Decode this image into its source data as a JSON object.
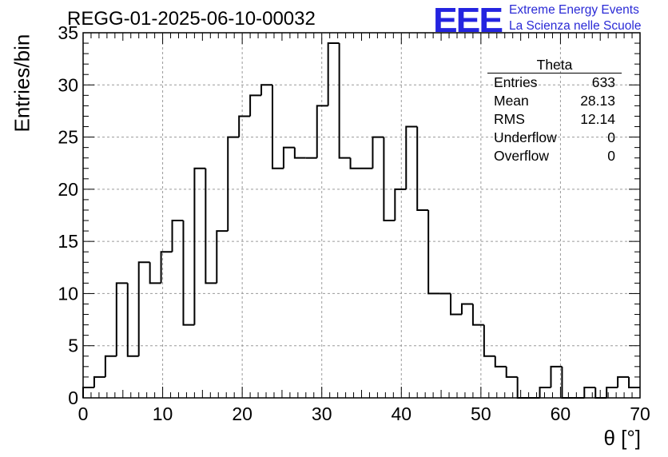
{
  "title": "REGG-01-2025-06-10-00032",
  "logo": {
    "text": "EEE",
    "line1": "Extreme Energy Events",
    "line2": "La Scienza nelle Scuole",
    "color": "#2424e0"
  },
  "stats": {
    "name": "Theta",
    "rows": [
      {
        "label": "Entries",
        "value": "633"
      },
      {
        "label": "Mean",
        "value": "28.13"
      },
      {
        "label": "RMS",
        "value": "12.14"
      },
      {
        "label": "Underflow",
        "value": "0"
      },
      {
        "label": "Overflow",
        "value": "0"
      }
    ]
  },
  "chart_data": {
    "type": "histogram",
    "xlabel": "θ [°]",
    "ylabel": "Entries/bin",
    "xlim": [
      0,
      70
    ],
    "ylim": [
      0,
      35
    ],
    "x_ticks": [
      0,
      10,
      20,
      30,
      40,
      50,
      60,
      70
    ],
    "y_ticks": [
      0,
      5,
      10,
      15,
      20,
      25,
      30,
      35
    ],
    "bin_width": 1.4,
    "values": [
      1,
      2,
      4,
      11,
      4,
      13,
      11,
      14,
      17,
      7,
      22,
      11,
      16,
      25,
      27,
      29,
      30,
      22,
      24,
      23,
      23,
      28,
      34,
      23,
      22,
      22,
      25,
      17,
      20,
      26,
      18,
      10,
      10,
      8,
      9,
      7,
      4,
      3,
      2,
      0,
      0,
      1,
      3,
      0,
      0,
      1,
      0,
      1,
      2,
      1
    ],
    "grid": true
  }
}
